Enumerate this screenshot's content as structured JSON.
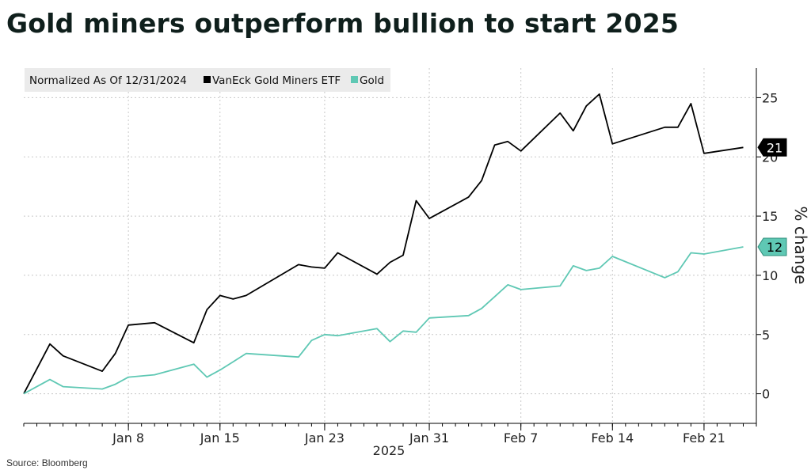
{
  "title": "Gold miners outperform bullion to start 2025",
  "source": "Source: Bloomberg",
  "chart_data": {
    "type": "line",
    "legend": {
      "prefix": "Normalized As Of 12/31/2024",
      "placement": "top-left"
    },
    "x": [
      "2024-12-31",
      "2025-01-02",
      "2025-01-03",
      "2025-01-06",
      "2025-01-07",
      "2025-01-08",
      "2025-01-10",
      "2025-01-13",
      "2025-01-14",
      "2025-01-15",
      "2025-01-16",
      "2025-01-17",
      "2025-01-21",
      "2025-01-22",
      "2025-01-23",
      "2025-01-24",
      "2025-01-27",
      "2025-01-28",
      "2025-01-29",
      "2025-01-30",
      "2025-01-31",
      "2025-02-03",
      "2025-02-04",
      "2025-02-05",
      "2025-02-06",
      "2025-02-07",
      "2025-02-10",
      "2025-02-11",
      "2025-02-12",
      "2025-02-13",
      "2025-02-14",
      "2025-02-18",
      "2025-02-19",
      "2025-02-20",
      "2025-02-21",
      "2025-02-24"
    ],
    "series": [
      {
        "name": "VanEck Gold Miners ETF",
        "color": "#000000",
        "values": [
          0,
          4.2,
          3.2,
          1.9,
          3.4,
          5.8,
          6.0,
          4.3,
          7.1,
          8.3,
          8.0,
          8.3,
          10.9,
          10.7,
          10.6,
          11.9,
          10.1,
          11.1,
          11.7,
          16.3,
          14.8,
          16.6,
          18.0,
          21.0,
          21.3,
          20.5,
          23.7,
          22.2,
          24.3,
          25.3,
          21.1,
          22.5,
          22.5,
          24.5,
          20.3,
          20.8
        ],
        "end_label": "21"
      },
      {
        "name": "Gold",
        "color": "#5fc8b4",
        "values": [
          0,
          1.2,
          0.6,
          0.4,
          0.8,
          1.4,
          1.6,
          2.5,
          1.4,
          2.0,
          2.7,
          3.4,
          3.1,
          4.5,
          5.0,
          4.9,
          5.5,
          4.4,
          5.3,
          5.2,
          6.4,
          6.6,
          7.2,
          8.2,
          9.2,
          8.8,
          9.1,
          10.8,
          10.4,
          10.6,
          11.6,
          9.8,
          10.3,
          11.9,
          11.8,
          12.4
        ],
        "end_label": "12"
      }
    ],
    "x_ticks": [
      {
        "label": "Jan 8",
        "date": "2025-01-08"
      },
      {
        "label": "Jan 15",
        "date": "2025-01-15"
      },
      {
        "label": "Jan 23",
        "date": "2025-01-23"
      },
      {
        "label": "Jan 31",
        "date": "2025-01-31"
      },
      {
        "label": "Feb 7",
        "date": "2025-02-07"
      },
      {
        "label": "Feb 14",
        "date": "2025-02-14"
      },
      {
        "label": "Feb 21",
        "date": "2025-02-21"
      }
    ],
    "xlabel": "2025",
    "ylabel": "% change",
    "y_ticks": [
      0,
      5,
      10,
      15,
      20,
      25
    ],
    "ylim": [
      -2.5,
      27.5
    ],
    "xlim": [
      "2024-12-31",
      "2025-02-25"
    ],
    "grid": true,
    "y_axis_side": "right"
  }
}
